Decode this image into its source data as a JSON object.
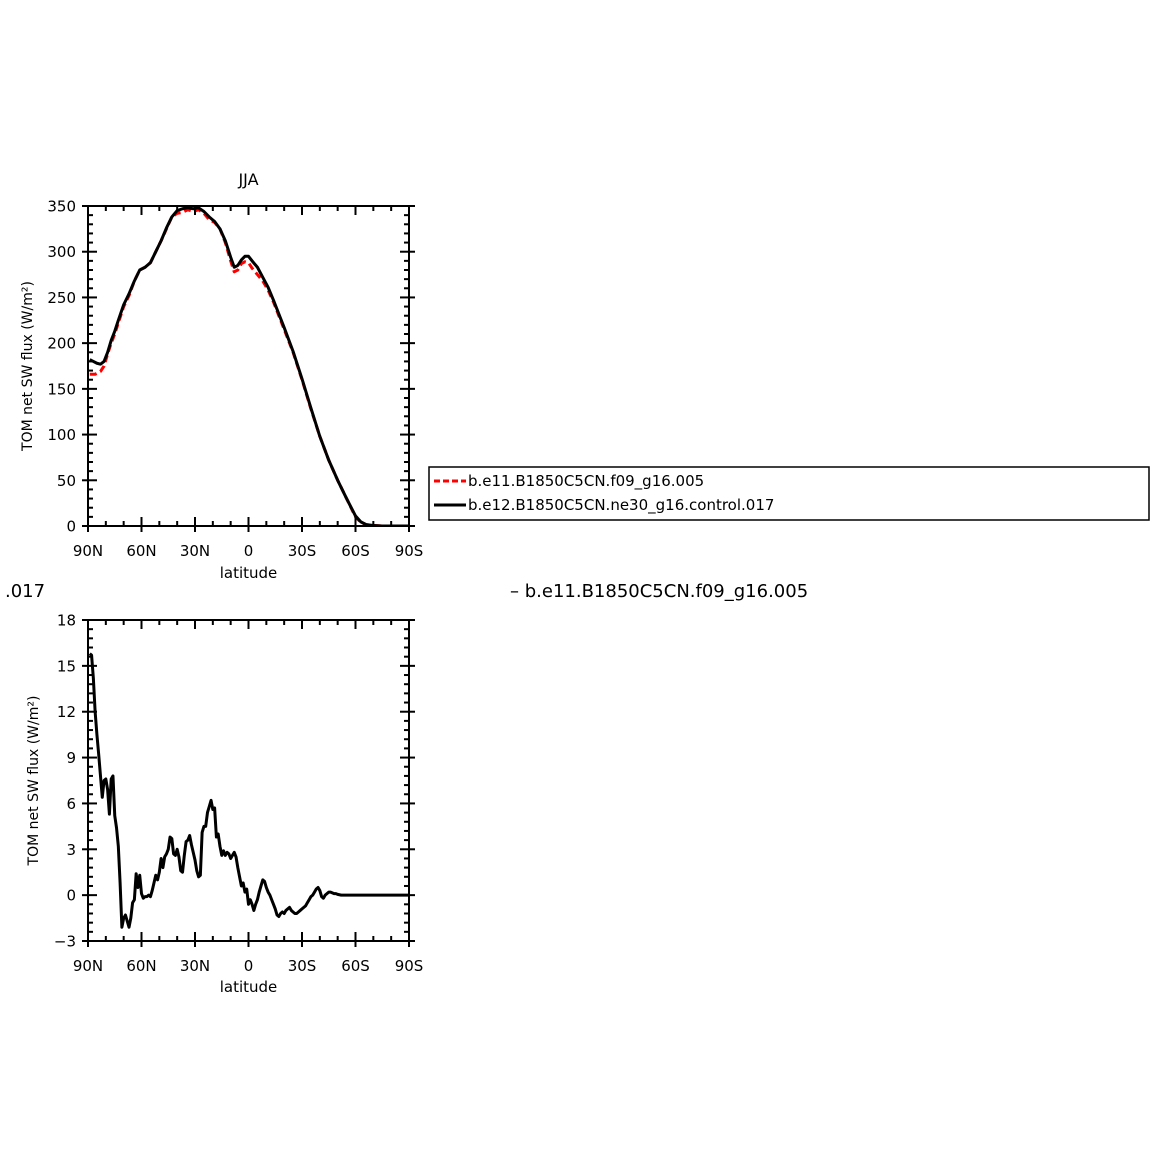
{
  "stray_text": {
    "left": ".017",
    "right": "– b.e11.B1850C5CN.f09_g16.005"
  },
  "legend": {
    "entries": [
      {
        "label": "b.e11.B1850C5CN.f09_g16.005",
        "color": "#ff0000",
        "dash": "dashed"
      },
      {
        "label": "b.e12.B1850C5CN.ne30_g16.control.017",
        "color": "#000000",
        "dash": "solid"
      }
    ]
  },
  "chart_data": [
    {
      "type": "line",
      "title": "JJA",
      "xlabel": "latitude",
      "ylabel": "TOM net SW flux (W/m²)",
      "xlim": [
        90,
        -90
      ],
      "ylim": [
        0,
        350
      ],
      "xticks": [
        90,
        60,
        30,
        0,
        -30,
        -60,
        -90
      ],
      "xtick_labels": [
        "90N",
        "60N",
        "30N",
        "0",
        "30S",
        "60S",
        "90S"
      ],
      "yticks": [
        0,
        50,
        100,
        150,
        200,
        250,
        300,
        350
      ],
      "ytick_labels": [
        "0",
        "50",
        "100",
        "150",
        "200",
        "250",
        "300",
        "350"
      ],
      "series": [
        {
          "name": "b.e11.B1850C5CN.f09_g16.005",
          "color": "#ff0000",
          "dash": "dashed",
          "x": [
            89,
            86,
            83,
            81,
            79,
            77,
            75,
            73,
            70,
            67,
            64,
            61,
            58,
            55,
            52,
            49,
            46,
            43,
            40,
            37,
            34,
            31,
            28,
            25,
            22,
            19,
            16,
            13,
            10,
            8,
            6,
            4,
            2,
            0,
            -2,
            -5,
            -8,
            -11,
            -14,
            -17,
            -20,
            -25,
            -30,
            -35,
            -40,
            -45,
            -50,
            -55,
            -60,
            -63,
            -66,
            -70,
            -75,
            -80,
            -85,
            -90
          ],
          "y": [
            166,
            166,
            169,
            175,
            188,
            200,
            210,
            222,
            240,
            252,
            268,
            280,
            283,
            288,
            300,
            312,
            325,
            338,
            342,
            343,
            346,
            344,
            346,
            342,
            335,
            332,
            325,
            310,
            290,
            278,
            280,
            287,
            289,
            288,
            282,
            275,
            268,
            258,
            245,
            230,
            215,
            190,
            160,
            128,
            98,
            72,
            50,
            30,
            10,
            4,
            1.5,
            0.5,
            0,
            0,
            0,
            0
          ]
        },
        {
          "name": "b.e12.B1850C5CN.ne30_g16.control.017",
          "color": "#000000",
          "dash": "solid",
          "x": [
            89,
            87,
            85,
            83,
            81,
            79,
            77,
            75,
            73,
            70,
            67,
            64,
            61,
            58,
            55,
            52,
            49,
            46,
            43,
            40,
            37,
            34,
            31,
            28,
            25,
            22,
            19,
            16,
            13,
            10,
            8,
            6,
            4,
            2,
            0,
            -2,
            -5,
            -8,
            -11,
            -14,
            -17,
            -20,
            -25,
            -30,
            -35,
            -40,
            -45,
            -50,
            -55,
            -60,
            -63,
            -66,
            -70,
            -75,
            -80,
            -85,
            -90
          ],
          "y": [
            182,
            180,
            178,
            177,
            180,
            190,
            203,
            213,
            225,
            242,
            254,
            268,
            280,
            283,
            288,
            300,
            312,
            326,
            338,
            345,
            347,
            348,
            347,
            348,
            344,
            338,
            333,
            325,
            312,
            294,
            283,
            285,
            291,
            295,
            295,
            290,
            283,
            272,
            261,
            247,
            232,
            217,
            191,
            161,
            129,
            98,
            72,
            50,
            30,
            11,
            4.5,
            1.5,
            0.5,
            0,
            0,
            0,
            0
          ]
        }
      ]
    },
    {
      "type": "line",
      "title": "",
      "xlabel": "latitude",
      "ylabel": "TOM net SW flux (W/m²)",
      "xlim": [
        90,
        -90
      ],
      "ylim": [
        -3,
        18
      ],
      "xticks": [
        90,
        60,
        30,
        0,
        -30,
        -60,
        -90
      ],
      "xtick_labels": [
        "90N",
        "60N",
        "30N",
        "0",
        "30S",
        "60S",
        "90S"
      ],
      "yticks": [
        -3,
        0,
        3,
        6,
        9,
        12,
        15,
        18
      ],
      "ytick_labels": [
        "−3",
        "0",
        "3",
        "6",
        "9",
        "12",
        "15",
        "18"
      ],
      "series": [
        {
          "color": "#000000",
          "dash": "solid",
          "x": [
            89,
            88,
            87,
            86,
            85,
            84,
            83,
            82,
            81,
            80,
            79,
            78,
            77,
            76,
            75,
            74,
            73,
            72,
            71,
            70,
            69,
            68,
            67,
            66,
            65,
            64,
            63,
            62,
            61,
            60,
            59,
            58,
            57,
            56,
            55,
            54,
            53,
            52,
            51,
            50,
            49,
            48,
            47,
            46,
            45,
            44,
            43,
            42,
            41,
            40,
            39,
            38,
            37,
            36,
            35,
            34,
            33,
            32,
            31,
            30,
            29,
            28,
            27,
            26,
            25,
            24,
            23,
            22,
            21,
            20,
            19,
            18,
            17,
            16,
            15,
            14,
            13,
            12,
            11,
            10,
            9,
            8,
            7,
            6,
            5,
            4,
            3,
            2,
            1,
            0,
            -1,
            -2,
            -3,
            -4,
            -5,
            -6,
            -7,
            -8,
            -9,
            -10,
            -11,
            -12,
            -13,
            -14,
            -15,
            -16,
            -17,
            -18,
            -19,
            -20,
            -21,
            -22,
            -23,
            -24,
            -25,
            -26,
            -27,
            -28,
            -29,
            -30,
            -31,
            -32,
            -33,
            -34,
            -35,
            -36,
            -37,
            -38,
            -39,
            -40,
            -41,
            -42,
            -43,
            -44,
            -45,
            -46,
            -47,
            -48,
            -49,
            -50,
            -52,
            -54,
            -56,
            -58,
            -60,
            -62,
            -63,
            -64,
            -65,
            -66,
            -68,
            -70,
            -72,
            -75,
            -80,
            -85,
            -90
          ],
          "y": [
            15.8,
            15.7,
            14.2,
            12.0,
            10.5,
            9.2,
            7.8,
            6.4,
            7.5,
            7.6,
            6.9,
            5.3,
            7.6,
            7.8,
            5.2,
            4.4,
            3.2,
            0.8,
            -2.1,
            -1.5,
            -1.3,
            -1.7,
            -2.1,
            -1.5,
            -0.5,
            -0.3,
            1.4,
            0.5,
            1.3,
            0.1,
            -0.2,
            -0.1,
            -0.1,
            0.0,
            -0.1,
            0.3,
            0.8,
            1.3,
            1.0,
            1.5,
            2.4,
            1.8,
            2.5,
            2.7,
            3.0,
            3.8,
            3.7,
            2.7,
            2.6,
            3.0,
            2.5,
            1.6,
            1.5,
            2.6,
            3.5,
            3.6,
            3.9,
            3.3,
            2.8,
            2.3,
            1.6,
            1.2,
            1.3,
            4.1,
            4.5,
            4.5,
            5.4,
            5.8,
            6.2,
            5.6,
            5.7,
            3.8,
            4.0,
            3.2,
            2.6,
            2.9,
            2.6,
            2.8,
            2.7,
            2.4,
            2.6,
            2.8,
            2.5,
            1.8,
            1.2,
            0.6,
            0.8,
            0.2,
            0.4,
            -0.6,
            -0.3,
            -0.6,
            -1.0,
            -0.6,
            -0.3,
            0.2,
            0.6,
            1.0,
            0.9,
            0.5,
            0.2,
            0.0,
            -0.3,
            -0.6,
            -0.9,
            -1.3,
            -1.4,
            -1.2,
            -1.1,
            -1.2,
            -1.0,
            -0.9,
            -0.8,
            -1.0,
            -1.1,
            -1.2,
            -1.2,
            -1.1,
            -1.0,
            -0.9,
            -0.8,
            -0.7,
            -0.5,
            -0.3,
            -0.1,
            0.0,
            0.2,
            0.4,
            0.5,
            0.3,
            -0.1,
            -0.2,
            0.0,
            0.1,
            0.2,
            0.2,
            0.15,
            0.1,
            0.1,
            0.05,
            0.0,
            0.0,
            0.0,
            0.0,
            0.0,
            0.0,
            0.0,
            0.0,
            0.0,
            0.0,
            0.0,
            0.0,
            0.0,
            0.0,
            0.0,
            0.0,
            0.0
          ]
        }
      ]
    }
  ]
}
